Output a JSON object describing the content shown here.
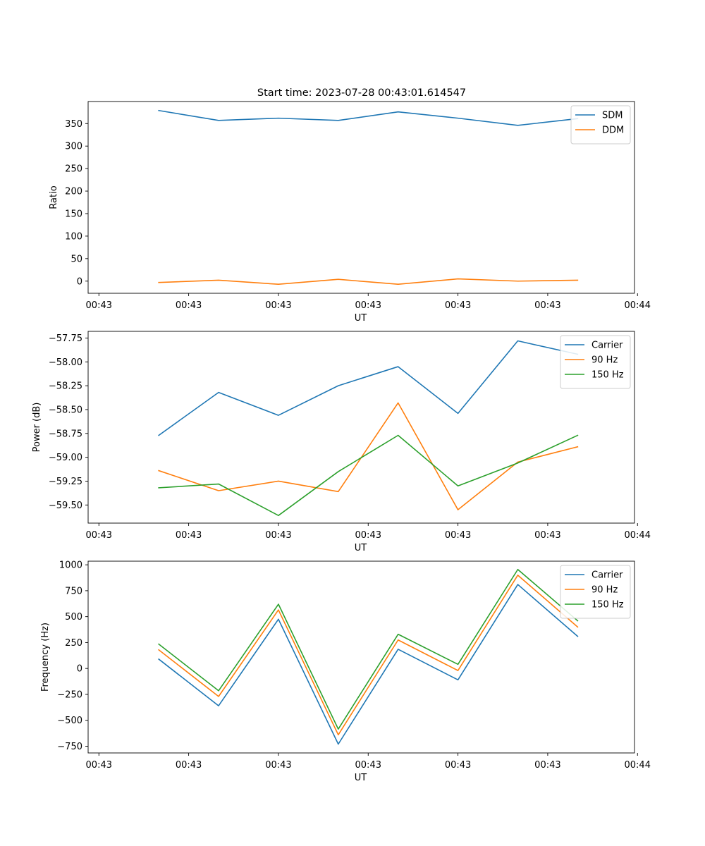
{
  "figure": {
    "title": "Start time: 2023-07-28 00:43:01.614547"
  },
  "chart_data": [
    {
      "type": "line",
      "title": "Start time: 2023-07-28 00:43:01.614547",
      "xlabel": "UT",
      "ylabel": "Ratio",
      "x": [
        1,
        2,
        3,
        4,
        5,
        6,
        7,
        8
      ],
      "xlim": [
        -0.18,
        8.95
      ],
      "x_ticks": [
        0,
        1.5,
        3,
        4.5,
        6,
        7.5,
        9
      ],
      "x_tick_labels": [
        "00:43",
        "00:43",
        "00:43",
        "00:43",
        "00:43",
        "00:43",
        "00:44"
      ],
      "ylim": [
        -27,
        399
      ],
      "y_ticks": [
        0,
        50,
        100,
        150,
        200,
        250,
        300,
        350
      ],
      "y_tick_labels": [
        "0",
        "50",
        "100",
        "150",
        "200",
        "250",
        "300",
        "350"
      ],
      "legend_position": "top-right",
      "series": [
        {
          "name": "SDM",
          "color": "#1f77b4",
          "values": [
            379,
            357,
            362,
            357,
            376,
            362,
            346,
            361
          ]
        },
        {
          "name": "DDM",
          "color": "#ff7f0e",
          "values": [
            -3,
            2,
            -7,
            4,
            -7,
            5,
            0,
            2
          ]
        }
      ]
    },
    {
      "type": "line",
      "title": "",
      "xlabel": "UT",
      "ylabel": "Power (dB)",
      "x": [
        1,
        2,
        3,
        4,
        5,
        6,
        7,
        8
      ],
      "xlim": [
        -0.18,
        8.95
      ],
      "x_ticks": [
        0,
        1.5,
        3,
        4.5,
        6,
        7.5,
        9
      ],
      "x_tick_labels": [
        "00:43",
        "00:43",
        "00:43",
        "00:43",
        "00:43",
        "00:43",
        "00:44"
      ],
      "ylim": [
        -59.69,
        -57.68
      ],
      "y_ticks": [
        -59.5,
        -59.25,
        -59.0,
        -58.75,
        -58.5,
        -58.25,
        -58.0,
        -57.75
      ],
      "y_tick_labels": [
        "−59.50",
        "−59.25",
        "−59.00",
        "−58.75",
        "−58.50",
        "−58.25",
        "−58.00",
        "−57.75"
      ],
      "legend_position": "top-right",
      "series": [
        {
          "name": "Carrier",
          "color": "#1f77b4",
          "values": [
            -58.77,
            -58.32,
            -58.56,
            -58.25,
            -58.05,
            -58.54,
            -57.78,
            -57.92
          ]
        },
        {
          "name": "90 Hz",
          "color": "#ff7f0e",
          "values": [
            -59.14,
            -59.35,
            -59.25,
            -59.36,
            -58.43,
            -59.55,
            -59.05,
            -58.89
          ]
        },
        {
          "name": "150 Hz",
          "color": "#2ca02c",
          "values": [
            -59.32,
            -59.28,
            -59.61,
            -59.15,
            -58.77,
            -59.3,
            -59.06,
            -58.77
          ]
        }
      ]
    },
    {
      "type": "line",
      "title": "",
      "xlabel": "UT",
      "ylabel": "Frequency (Hz)",
      "x": [
        1,
        2,
        3,
        4,
        5,
        6,
        7,
        8
      ],
      "xlim": [
        -0.18,
        8.95
      ],
      "x_ticks": [
        0,
        1.5,
        3,
        4.5,
        6,
        7.5,
        9
      ],
      "x_tick_labels": [
        "00:43",
        "00:43",
        "00:43",
        "00:43",
        "00:43",
        "00:43",
        "00:44"
      ],
      "ylim": [
        -815,
        1035
      ],
      "y_ticks": [
        -750,
        -500,
        -250,
        0,
        250,
        500,
        750,
        1000
      ],
      "y_tick_labels": [
        "−750",
        "−500",
        "−250",
        "0",
        "250",
        "500",
        "750",
        "1000"
      ],
      "legend_position": "top-right",
      "series": [
        {
          "name": "Carrier",
          "color": "#1f77b4",
          "values": [
            90,
            -360,
            475,
            -730,
            185,
            -110,
            810,
            310
          ]
        },
        {
          "name": "90 Hz",
          "color": "#ff7f0e",
          "values": [
            180,
            -270,
            565,
            -640,
            275,
            -20,
            900,
            400
          ]
        },
        {
          "name": "150 Hz",
          "color": "#2ca02c",
          "values": [
            235,
            -215,
            620,
            -585,
            330,
            40,
            955,
            460
          ]
        }
      ]
    }
  ]
}
